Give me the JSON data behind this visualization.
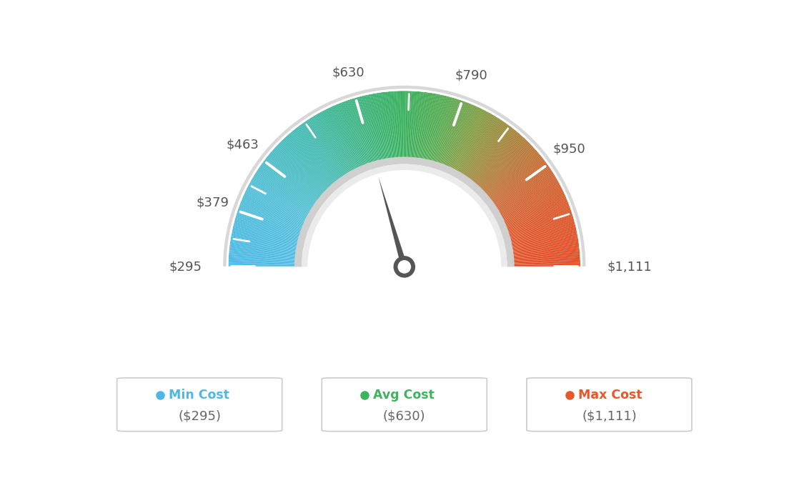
{
  "min_val": 295,
  "avg_val": 630,
  "max_val": 1111,
  "tick_labels": [
    "$295",
    "$379",
    "$463",
    "$630",
    "$790",
    "$950",
    "$1,111"
  ],
  "tick_values": [
    295,
    379,
    463,
    630,
    790,
    950,
    1111
  ],
  "legend_items": [
    {
      "label": "Min Cost",
      "value": "($295)",
      "color": "#4db8e8"
    },
    {
      "label": "Avg Cost",
      "value": "($630)",
      "color": "#3cb55e"
    },
    {
      "label": "Max Cost",
      "value": "($1,111)",
      "color": "#e8572a"
    }
  ],
  "needle_value": 630,
  "background_color": "#ffffff",
  "color_stops": [
    [
      0.0,
      [
        75,
        185,
        230
      ]
    ],
    [
      0.15,
      [
        80,
        190,
        215
      ]
    ],
    [
      0.3,
      [
        65,
        185,
        175
      ]
    ],
    [
      0.42,
      [
        58,
        178,
        120
      ]
    ],
    [
      0.5,
      [
        52,
        175,
        90
      ]
    ],
    [
      0.58,
      [
        85,
        170,
        80
      ]
    ],
    [
      0.65,
      [
        130,
        155,
        65
      ]
    ],
    [
      0.72,
      [
        165,
        130,
        55
      ]
    ],
    [
      0.8,
      [
        200,
        105,
        50
      ]
    ],
    [
      0.9,
      [
        220,
        85,
        40
      ]
    ],
    [
      1.0,
      [
        228,
        75,
        35
      ]
    ]
  ]
}
